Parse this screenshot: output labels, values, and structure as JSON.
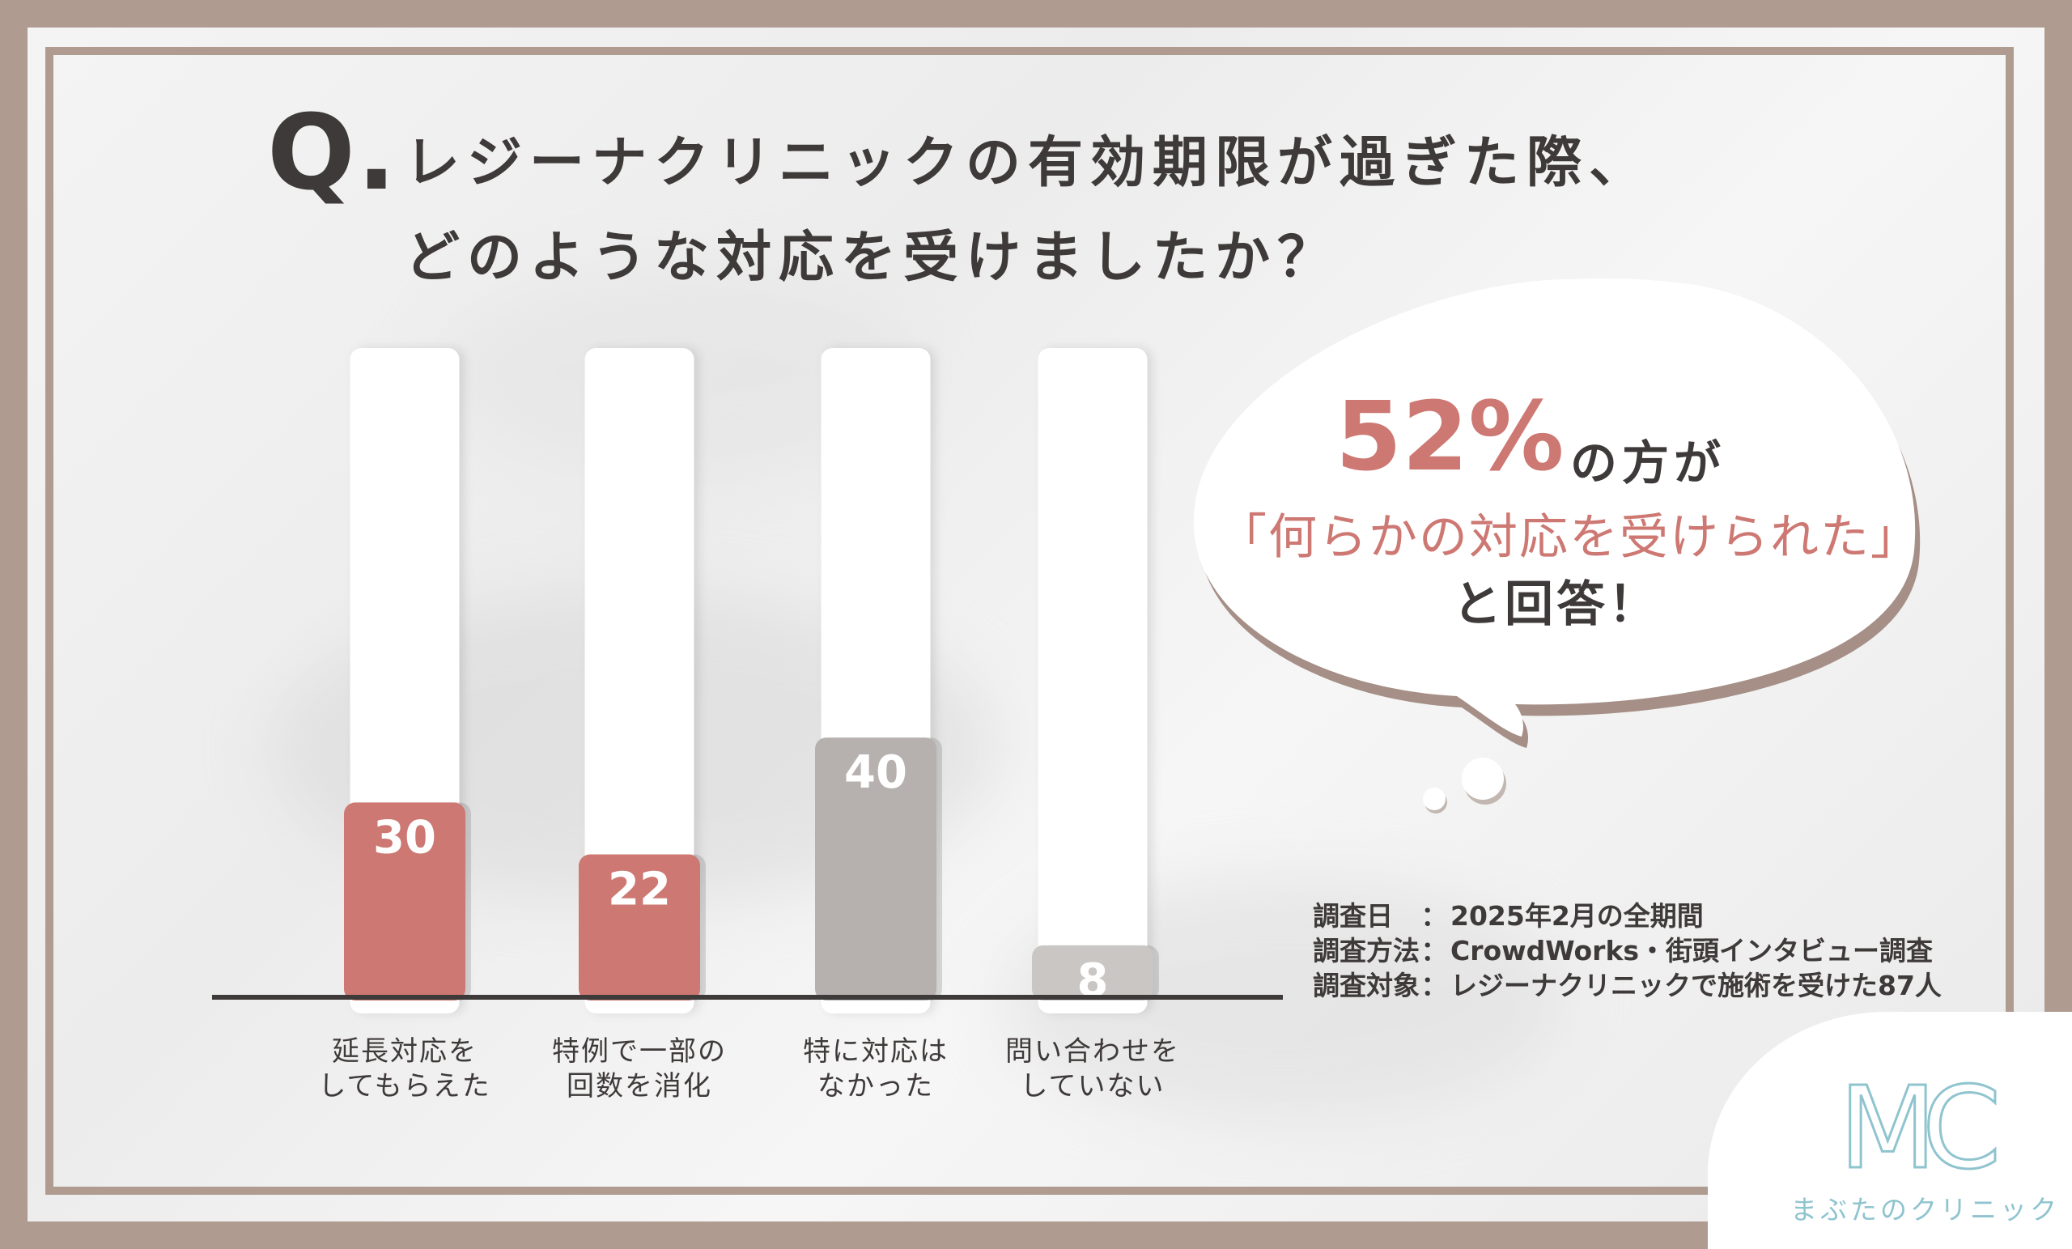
{
  "title": {
    "q_mark": "Q.",
    "line1": "レジーナクリニックの有効期限が過ぎた際、",
    "line2": "どのような対応を受けましたか？"
  },
  "chart_data": {
    "type": "bar",
    "categories": [
      "延長対応をしてもらえた",
      "特例で一部の回数を消化",
      "特に対応はなかった",
      "問い合わせをしていない"
    ],
    "category_lines": [
      [
        "延長対応を",
        "してもらえた"
      ],
      [
        "特例で一部の",
        "回数を消化"
      ],
      [
        "特に対応は",
        "なかった"
      ],
      [
        "問い合わせを",
        "していない"
      ]
    ],
    "values": [
      30,
      22,
      40,
      8
    ],
    "value_labels": [
      "30",
      "22",
      "40",
      "8"
    ],
    "bar_colors": [
      "#cd7872",
      "#cd7872",
      "#b6b1ae",
      "#c9c6c4"
    ],
    "ylim": [
      0,
      100
    ],
    "grid": false,
    "legend": "none"
  },
  "bubble": {
    "percent": "52%",
    "suffix": "の方が",
    "quote": "「何らかの対応を受けられた」",
    "closing": "と回答！"
  },
  "survey": [
    {
      "key": "調査日",
      "sep": "：",
      "value": "2025年2月の全期間"
    },
    {
      "key": "調査方法",
      "sep": "：",
      "value": "CrowdWorks・街頭インタビュー調査"
    },
    {
      "key": "調査対象",
      "sep": "：",
      "value": "レジーナクリニックで施術を受けた87人"
    }
  ],
  "brand": {
    "logo_letters": "MC",
    "name": "まぶたのクリニック"
  },
  "colors": {
    "accent": "#cd7872",
    "frame": "#b09b91",
    "text": "#3e3a39",
    "logo": "#8fc4cf"
  }
}
